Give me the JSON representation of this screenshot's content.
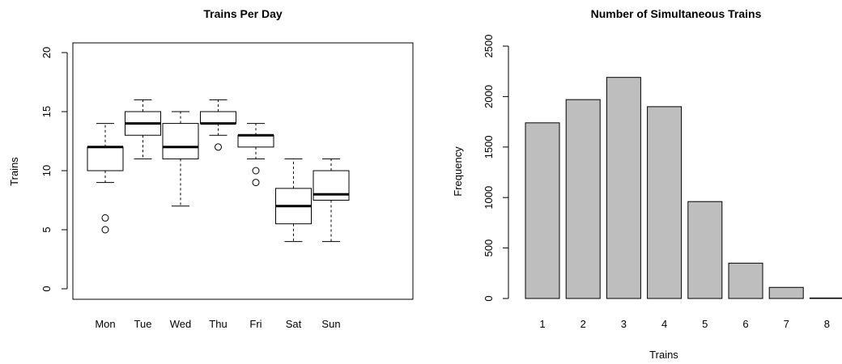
{
  "chart_data": [
    {
      "type": "boxplot",
      "title": "Trains Per Day",
      "xlabel": "",
      "ylabel": "Trains",
      "ylim": [
        0,
        20
      ],
      "yticks": [
        0,
        5,
        10,
        15,
        20
      ],
      "categories": [
        "Mon",
        "Tue",
        "Wed",
        "Thu",
        "Fri",
        "Sat",
        "Sun"
      ],
      "boxes": [
        {
          "whisker_low": 9,
          "q1": 10,
          "median": 12,
          "q3": 12,
          "whisker_high": 14,
          "outliers": [
            5,
            6
          ]
        },
        {
          "whisker_low": 11,
          "q1": 13,
          "median": 14,
          "q3": 15,
          "whisker_high": 16,
          "outliers": []
        },
        {
          "whisker_low": 7,
          "q1": 11,
          "median": 12,
          "q3": 14,
          "whisker_high": 15,
          "outliers": []
        },
        {
          "whisker_low": 13,
          "q1": 14,
          "median": 14,
          "q3": 15,
          "whisker_high": 16,
          "outliers": [
            12
          ]
        },
        {
          "whisker_low": 11,
          "q1": 12,
          "median": 13,
          "q3": 13,
          "whisker_high": 14,
          "outliers": [
            9,
            10
          ]
        },
        {
          "whisker_low": 4,
          "q1": 5.5,
          "median": 7,
          "q3": 8.5,
          "whisker_high": 11,
          "outliers": []
        },
        {
          "whisker_low": 4,
          "q1": 7.5,
          "median": 8,
          "q3": 10,
          "whisker_high": 11,
          "outliers": []
        }
      ],
      "box_fill": "#ffffff"
    },
    {
      "type": "bar",
      "title": "Number of Simultaneous Trains",
      "xlabel": "Trains",
      "ylabel": "Frequency",
      "ylim": [
        0,
        2500
      ],
      "yticks": [
        0,
        500,
        1000,
        1500,
        2000,
        2500
      ],
      "categories": [
        "1",
        "2",
        "3",
        "4",
        "5",
        "6",
        "7",
        "8"
      ],
      "values": [
        1740,
        1970,
        2190,
        1900,
        960,
        350,
        110,
        5
      ],
      "bar_color": "#bebebe"
    }
  ]
}
